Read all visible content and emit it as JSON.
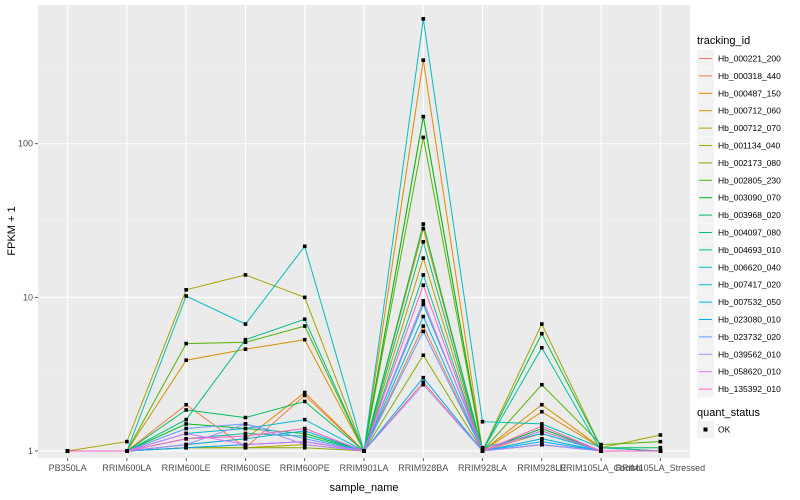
{
  "chart_data": {
    "type": "line",
    "xlabel": "sample_name",
    "ylabel": "FPKM + 1",
    "y_scale": "log10",
    "ylim": [
      0.9,
      800
    ],
    "y_ticks": [
      {
        "value": 1,
        "label": "1"
      },
      {
        "value": 10,
        "label": "10"
      },
      {
        "value": 100,
        "label": "100"
      }
    ],
    "categories": [
      "PB350LA",
      "RRIM600LA",
      "RRIM600LE",
      "RRIM600SE",
      "RRIM600PE",
      "RRIM901LA",
      "RRIM928BA",
      "RRIM928LA",
      "RRIM928LE",
      "RRIM105LA_Control",
      "RRIM105LA_Stressed"
    ],
    "legend_title": "tracking_id",
    "point_legend_title": "quant_status",
    "point_legend_label": "OK",
    "grid": true,
    "legend_position": "right",
    "series": [
      {
        "name": "Hb_000221_200",
        "color": "#F8766D",
        "values": [
          1.0,
          1.0,
          1.05,
          1.1,
          1.15,
          1.0,
          2.8,
          1.0,
          1.1,
          1.0,
          1.0
        ]
      },
      {
        "name": "Hb_000318_440",
        "color": "#EF7F49",
        "values": [
          1.0,
          1.0,
          2.0,
          1.05,
          2.3,
          1.0,
          6.5,
          1.0,
          1.3,
          1.0,
          1.0
        ]
      },
      {
        "name": "Hb_000487_150",
        "color": "#E38900",
        "values": [
          1.0,
          1.0,
          1.1,
          1.2,
          2.4,
          1.0,
          350,
          1.0,
          1.8,
          1.05,
          1.0
        ]
      },
      {
        "name": "Hb_000712_060",
        "color": "#D39200",
        "values": [
          1.0,
          1.0,
          3.9,
          4.6,
          5.3,
          1.0,
          28,
          1.0,
          2.0,
          1.05,
          1.0
        ]
      },
      {
        "name": "Hb_000712_070",
        "color": "#BF9B00",
        "values": [
          1.0,
          1.0,
          1.05,
          1.05,
          1.1,
          1.0,
          18,
          1.0,
          1.2,
          1.0,
          1.0
        ]
      },
      {
        "name": "Hb_001134_040",
        "color": "#A6A400",
        "values": [
          1.0,
          1.15,
          11.2,
          14.0,
          10.0,
          1.0,
          150,
          1.0,
          6.7,
          1.05,
          1.27
        ]
      },
      {
        "name": "Hb_002173_080",
        "color": "#85AD00",
        "values": [
          1.0,
          1.0,
          1.05,
          1.05,
          1.05,
          1.0,
          4.2,
          1.0,
          1.1,
          1.0,
          1.0
        ]
      },
      {
        "name": "Hb_002805_230",
        "color": "#53B400",
        "values": [
          1.0,
          1.0,
          5.0,
          5.1,
          6.5,
          1.0,
          110,
          1.0,
          2.7,
          1.1,
          1.15
        ]
      },
      {
        "name": "Hb_003090_070",
        "color": "#00B81F",
        "values": [
          1.0,
          1.0,
          1.5,
          1.4,
          1.3,
          1.0,
          150,
          1.0,
          1.4,
          1.0,
          1.0
        ]
      },
      {
        "name": "Hb_003968_020",
        "color": "#00BC59",
        "values": [
          1.0,
          1.0,
          1.85,
          1.65,
          2.1,
          1.0,
          30,
          1.0,
          5.8,
          1.05,
          1.05
        ]
      },
      {
        "name": "Hb_004097_080",
        "color": "#00BE7F",
        "values": [
          1.0,
          1.0,
          1.6,
          5.3,
          7.2,
          1.0,
          23,
          1.0,
          1.35,
          1.0,
          1.0
        ]
      },
      {
        "name": "Hb_004693_010",
        "color": "#00C09E",
        "values": [
          1.0,
          1.0,
          1.2,
          1.3,
          1.25,
          1.0,
          14,
          1.0,
          4.7,
          1.0,
          1.0
        ]
      },
      {
        "name": "Hb_006620_040",
        "color": "#00BFBA",
        "values": [
          1.0,
          1.0,
          10.2,
          6.7,
          21.5,
          1.0,
          650,
          1.55,
          1.5,
          1.05,
          1.0
        ]
      },
      {
        "name": "Hb_007417_020",
        "color": "#00BBD4",
        "values": [
          1.0,
          1.0,
          1.3,
          1.4,
          1.6,
          1.0,
          9.0,
          1.05,
          1.3,
          1.0,
          1.0
        ]
      },
      {
        "name": "Hb_007532_050",
        "color": "#00B5EB",
        "values": [
          1.0,
          1.0,
          1.1,
          1.2,
          1.35,
          1.0,
          7.5,
          1.0,
          1.2,
          1.0,
          1.0
        ]
      },
      {
        "name": "Hb_023080_010",
        "color": "#00ACFC",
        "values": [
          1.0,
          1.0,
          1.05,
          1.1,
          1.15,
          1.0,
          3.0,
          1.0,
          1.15,
          1.0,
          1.0
        ]
      },
      {
        "name": "Hb_023732_020",
        "color": "#619CFF",
        "values": [
          1.0,
          1.0,
          1.4,
          1.5,
          1.2,
          1.0,
          6.0,
          1.0,
          1.1,
          1.0,
          1.0
        ]
      },
      {
        "name": "Hb_039562_010",
        "color": "#AC88FF",
        "values": [
          1.0,
          1.0,
          1.1,
          1.5,
          1.1,
          1.0,
          2.7,
          1.0,
          1.1,
          1.0,
          1.0
        ]
      },
      {
        "name": "Hb_058620_010",
        "color": "#DB72FB",
        "values": [
          1.0,
          1.0,
          1.3,
          1.1,
          1.15,
          1.0,
          9.5,
          1.0,
          1.35,
          1.0,
          1.0
        ]
      },
      {
        "name": "Hb_135392_010",
        "color": "#FF61C9",
        "values": [
          1.0,
          1.0,
          1.2,
          1.25,
          1.4,
          1.0,
          12,
          1.0,
          1.45,
          1.0,
          1.0
        ]
      }
    ]
  }
}
